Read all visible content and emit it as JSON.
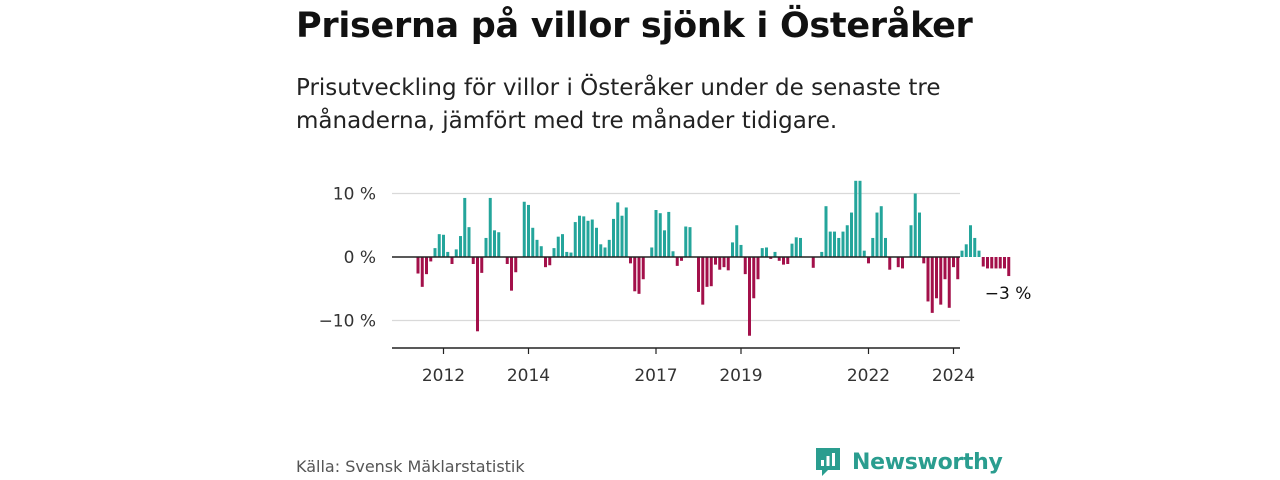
{
  "title": "Priserna på villor sjönk i Österåker",
  "subtitle": "Prisutveckling för villor i Österåker under de senaste tre månaderna, jämfört med tre månader tidigare.",
  "source": "Källa: Svensk Mäklarstatistik",
  "brand": "Newsworthy",
  "colors": {
    "positive": "#24a59b",
    "negative": "#a3104a",
    "grid": "#d9d9d9",
    "zero": "#222222",
    "brand": "#2a9d8f"
  },
  "chart_data": {
    "type": "bar",
    "title": "Priserna på villor sjönk i Österåker",
    "xlabel": "",
    "ylabel": "",
    "ylim": [
      -14,
      12
    ],
    "y_ticks": [
      {
        "value": 10,
        "label": "10 %"
      },
      {
        "value": 0,
        "label": "0 %"
      },
      {
        "value": -10,
        "label": "−10 %"
      }
    ],
    "x_ticks": [
      {
        "index": 6,
        "label": "2012"
      },
      {
        "index": 26,
        "label": "2014"
      },
      {
        "index": 56,
        "label": "2017"
      },
      {
        "index": 76,
        "label": "2019"
      },
      {
        "index": 106,
        "label": "2022"
      },
      {
        "index": 126,
        "label": "2024"
      }
    ],
    "end_label": "−3 %",
    "values": [
      -2.6,
      -4.7,
      -2.7,
      -0.7,
      1.4,
      3.6,
      3.5,
      0.8,
      -1.1,
      1.2,
      3.3,
      9.3,
      4.7,
      -1.1,
      -11.7,
      -2.5,
      3.0,
      9.3,
      4.2,
      3.9,
      0,
      -1.1,
      -5.3,
      -2.4,
      0,
      8.7,
      8.2,
      4.6,
      2.7,
      1.7,
      -1.6,
      -1.3,
      1.4,
      3.2,
      3.6,
      0.8,
      0.7,
      5.5,
      6.5,
      6.4,
      5.7,
      5.9,
      4.6,
      2.0,
      1.5,
      2.7,
      6.0,
      8.6,
      6.5,
      7.8,
      -1.0,
      -5.4,
      -5.8,
      -3.5,
      0,
      1.5,
      7.4,
      6.9,
      4.2,
      7.1,
      0.9,
      -1.4,
      -0.6,
      4.8,
      4.7,
      0,
      -5.5,
      -7.5,
      -4.7,
      -4.6,
      -1.2,
      -2.0,
      -1.6,
      -2.1,
      2.3,
      5.0,
      1.9,
      -2.7,
      -12.4,
      -6.5,
      -3.5,
      1.4,
      1.5,
      -0.3,
      0.8,
      -0.6,
      -1.2,
      -1.1,
      2.1,
      3.1,
      3.0,
      0,
      0,
      -1.7,
      0,
      0.8,
      8.0,
      4.0,
      4.0,
      3.0,
      4.0,
      5.0,
      7.0,
      12.0,
      12.0,
      1.0,
      -1.0,
      3.0,
      7.0,
      8.0,
      3.0,
      -2.0,
      0,
      -1.6,
      -1.8,
      0,
      5.0,
      10.0,
      7.0,
      -1.0,
      -7.0,
      -8.8,
      -6.5,
      -7.5,
      -3.5,
      -8.0,
      -1.6,
      -3.5,
      1.0,
      2.0,
      5.0,
      3.0,
      1.0,
      -1.5,
      -1.8,
      -1.8,
      -1.8,
      -1.8,
      -1.8,
      -3.0
    ]
  }
}
